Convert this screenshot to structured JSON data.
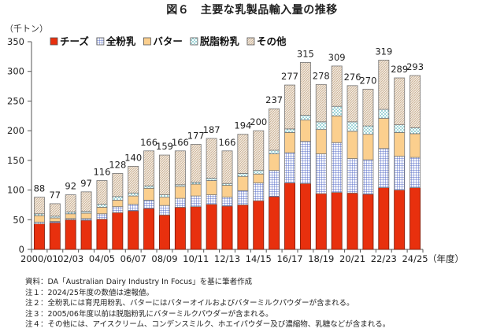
{
  "title": "図６　主要な乳製品輸入量の推移",
  "notes": [
    "資料：DA「Australian Dairy Industry In Focus」を基に筆者作成",
    "注１：2024/25年度の数値は速報値。",
    "注２：全粉乳には育児用粉乳、バターにはバターオイルおよびバターミルクパウダーが含まれる。",
    "注３：2005/06年度以前は脱脂粉乳にバターミルクパウダーが含まれる。",
    "注４：その他には、アイスクリーム、コンデンスミルク、ホエイパウダー及び濃縮物、乳糖などが含まれる。"
  ],
  "chart_data": {
    "type": "bar",
    "stacked": true,
    "title": "図６　主要な乳製品輸入量の推移",
    "ylabel": "（千トン）",
    "xlabel": "（年度）",
    "ylim": [
      0,
      350
    ],
    "yticks": [
      0,
      50,
      100,
      150,
      200,
      250,
      300,
      350
    ],
    "legend_position": "top-left",
    "grid": false,
    "categories": [
      "2000/01",
      "01/02",
      "02/03",
      "03/04",
      "04/05",
      "05/06",
      "06/07",
      "07/08",
      "08/09",
      "09/10",
      "10/11",
      "11/12",
      "12/13",
      "13/14",
      "14/15",
      "15/16",
      "16/17",
      "17/18",
      "18/19",
      "19/20",
      "20/21",
      "21/22",
      "22/23",
      "23/24",
      "24/25"
    ],
    "xtick_labels": [
      "2000/01",
      "02/03",
      "04/05",
      "06/07",
      "08/09",
      "10/11",
      "12/13",
      "14/15",
      "16/17",
      "18/19",
      "20/21",
      "22/23",
      "24/25"
    ],
    "totals": [
      88,
      77,
      92,
      97,
      116,
      128,
      140,
      166,
      159,
      166,
      177,
      187,
      166,
      194,
      200,
      237,
      277,
      315,
      278,
      309,
      276,
      270,
      319,
      289,
      293
    ],
    "series": [
      {
        "name": "チーズ",
        "color": "#e8300e",
        "pattern": "solid",
        "values": [
          43,
          45,
          50,
          49,
          51,
          62,
          65,
          69,
          58,
          71,
          72,
          76,
          73,
          75,
          82,
          89,
          112,
          111,
          94,
          96,
          95,
          93,
          104,
          100,
          104
        ]
      },
      {
        "name": "全粉乳",
        "color": "#5a6fc8",
        "pattern": "grid",
        "values": [
          3,
          2,
          2,
          3,
          9,
          10,
          11,
          14,
          16,
          15,
          18,
          16,
          15,
          24,
          30,
          44,
          51,
          71,
          67,
          84,
          58,
          58,
          66,
          57,
          51
        ]
      },
      {
        "name": "バター",
        "color": "#fbcf8e",
        "pattern": "solid",
        "values": [
          11,
          6,
          8,
          9,
          11,
          11,
          14,
          20,
          14,
          20,
          20,
          24,
          20,
          24,
          15,
          28,
          34,
          36,
          41,
          45,
          46,
          43,
          51,
          40,
          40
        ]
      },
      {
        "name": "脱脂粉乳",
        "color": "#7fc8c8",
        "pattern": "dots",
        "values": [
          3,
          3,
          3,
          3,
          5,
          6,
          5,
          4,
          4,
          3,
          3,
          4,
          3,
          5,
          6,
          6,
          6,
          8,
          13,
          16,
          16,
          14,
          15,
          13,
          10
        ]
      },
      {
        "name": "その他",
        "color": "#e6d6c2",
        "pattern": "hatch",
        "values": [
          28,
          21,
          29,
          33,
          40,
          39,
          45,
          59,
          67,
          57,
          64,
          67,
          55,
          66,
          67,
          70,
          74,
          89,
          63,
          68,
          61,
          62,
          83,
          79,
          88
        ]
      }
    ]
  }
}
